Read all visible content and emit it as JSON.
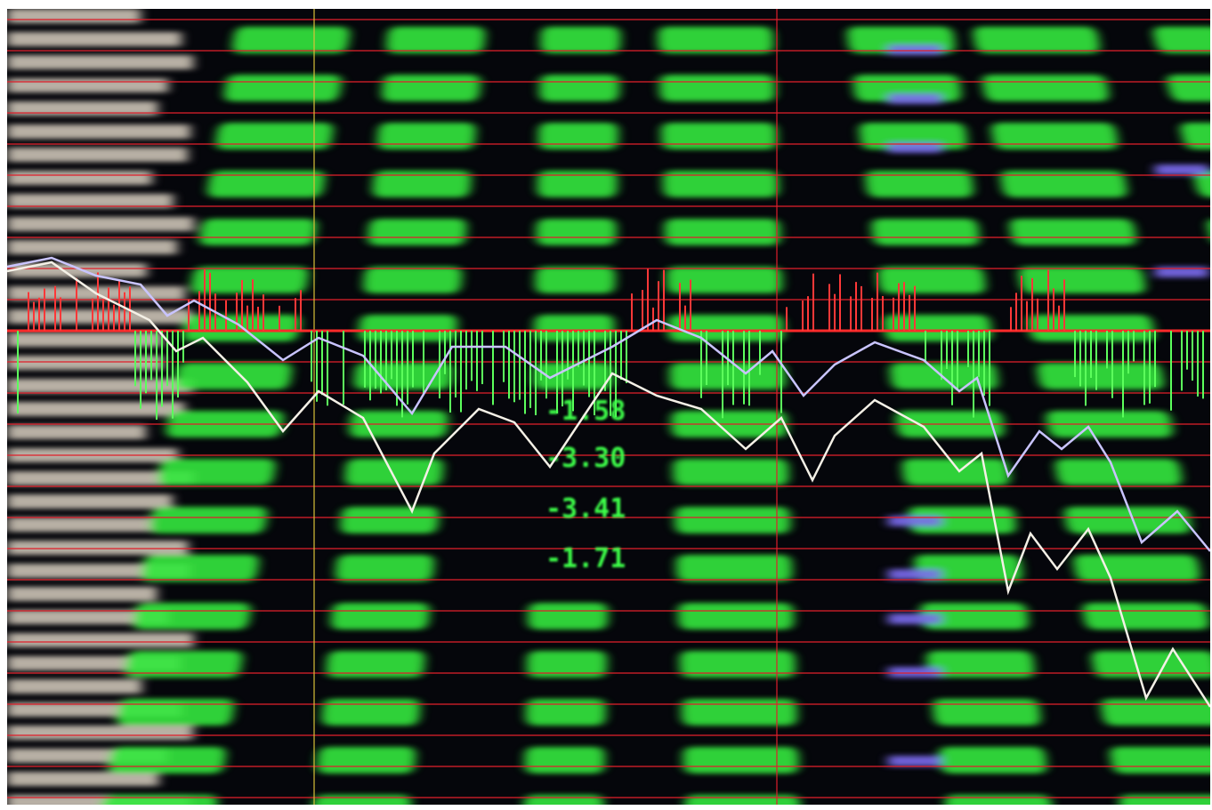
{
  "screen_texts": [
    "-1.58",
    "-3.30",
    "-3.41",
    "-1.71"
  ]
}
